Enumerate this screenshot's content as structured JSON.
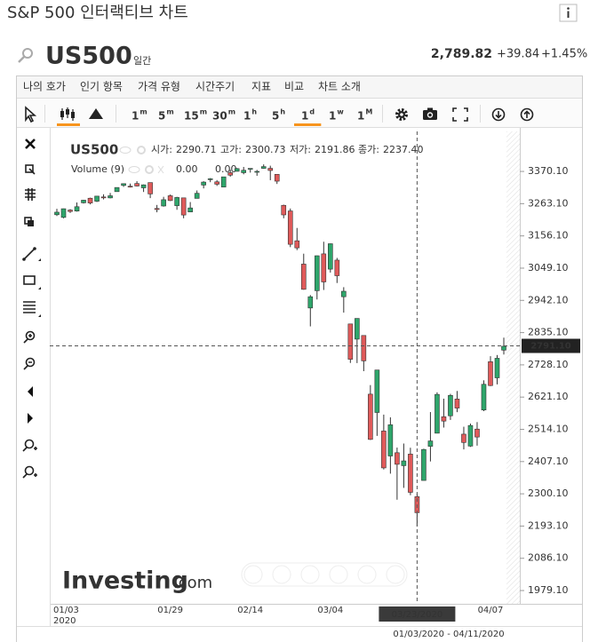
{
  "header": {
    "title": "S&P 500 인터랙티브 차트",
    "symbol": "US500",
    "interval": "일간",
    "price": "2,789.82",
    "change": "+39.84",
    "change_pct": "+1.45%"
  },
  "menu": [
    "나의 호가",
    "인기 항목",
    "가격 유형",
    "시간주기",
    "지표",
    "비교",
    "차트 소개"
  ],
  "toolbar": {
    "timeframes": [
      {
        "n": "1",
        "u": "m"
      },
      {
        "n": "5",
        "u": "m"
      },
      {
        "n": "15",
        "u": "m"
      },
      {
        "n": "30",
        "u": "m"
      },
      {
        "n": "1",
        "u": "h"
      },
      {
        "n": "5",
        "u": "h"
      },
      {
        "n": "1",
        "u": "d"
      },
      {
        "n": "1",
        "u": "w"
      },
      {
        "n": "1",
        "u": "M"
      }
    ],
    "selected_timeframe": 6
  },
  "legend": {
    "ohlc_titles": [
      "시가:",
      "고가:",
      "저가:",
      "종가:"
    ],
    "ohlc_values": [
      "2290.71",
      "2300.73",
      "2191.86",
      "2237.40"
    ],
    "volume_name": "Volume (9)",
    "volume_values": [
      "0.00",
      "0.00"
    ]
  },
  "watermark": {
    "brand": "Investing",
    "suffix": ".com"
  },
  "date_range": "01/03/2020 - 04/11/2020",
  "chart_data": {
    "type": "candlestick",
    "categories": [
      "01/03",
      null,
      null,
      null,
      null,
      null,
      null,
      null,
      null,
      null,
      null,
      null,
      null,
      null,
      null,
      null,
      null,
      "01/29",
      null,
      null,
      null,
      null,
      null,
      null,
      null,
      null,
      null,
      null,
      null,
      "02/14",
      null,
      null,
      null,
      null,
      null,
      null,
      null,
      null,
      null,
      null,
      null,
      "03/04",
      null,
      null,
      null,
      null,
      null,
      null,
      null,
      null,
      null,
      null,
      null,
      null,
      "03/23/2020",
      null,
      null,
      null,
      null,
      null,
      null,
      null,
      null,
      null,
      null,
      "04/07",
      null,
      null
    ],
    "year_label": "2020",
    "series": [
      {
        "name": "US500",
        "up_color": "#2ea66b",
        "down_color": "#e05a5a",
        "open": [
          3226.36,
          3217.55,
          3241.86,
          3238.59,
          3266.03,
          3281.2,
          3271.13,
          3285.35,
          3282.27,
          3302.97,
          3323.66,
          3321.03,
          3330.02,
          3315.77,
          3333.1,
          3247.16,
          3255.35,
          3289.46,
          3256.45,
          3282.33,
          3235.66,
          3280.61,
          3324.91,
          3344.92,
          3335.54,
          3318.28,
          3365.87,
          3370.5,
          3365.9,
          3378.08,
          3369.04,
          3380.39,
          3380.45,
          3360.5,
          3257.61,
          3238.94,
          3139.9,
          3062.54,
          2916.9,
          2974.28,
          3096.46,
          3045.75,
          3075.7,
          2954.2,
          2863.89,
          2813.48,
          2825.6,
          2630.86,
          2569.99,
          2508.59,
          2425.66,
          2436.5,
          2393.48,
          2431.94,
          2290.71,
          2344.44,
          2457.77,
          2501.29,
          2555.87,
          2558.98,
          2614.69,
          2498.08,
          2458.54,
          2514.92,
          2578.28,
          2738.65,
          2685.0,
          2776.99
        ],
        "high": [
          3246.15,
          3246.84,
          3244.91,
          3267.07,
          3275.58,
          3282.99,
          3288.13,
          3294.25,
          3298.66,
          3317.11,
          3329.88,
          3329.79,
          3337.77,
          3326.88,
          3333.18,
          3258.85,
          3285.78,
          3293.47,
          3285.91,
          3282.33,
          3268.44,
          3306.92,
          3337.58,
          3347.96,
          3341.42,
          3352.26,
          3375.63,
          3381.47,
          3385.09,
          3380.69,
          3375.01,
          3393.52,
          3389.15,
          3360.76,
          3259.81,
          3246.99,
          3182.51,
          3097.07,
          2959.72,
          3090.96,
          3136.72,
          3130.97,
          3083.04,
          2985.93,
          2863.89,
          2882.59,
          2825.6,
          2660.95,
          2711.33,
          2562.98,
          2553.93,
          2453.57,
          2466.97,
          2453.01,
          2300.73,
          2449.71,
          2571.42,
          2637.01,
          2615.91,
          2631.8,
          2641.39,
          2522.75,
          2533.22,
          2538.18,
          2676.85,
          2756.89,
          2760.75,
          2818.57
        ],
        "low": [
          3222.34,
          3214.64,
          3232.43,
          3236.67,
          3263.67,
          3260.86,
          3268.43,
          3277.19,
          3280.69,
          3302.82,
          3318.86,
          3316.61,
          3320.04,
          3301.87,
          3281.53,
          3234.5,
          3253.22,
          3271.89,
          3242.8,
          3214.68,
          3235.66,
          3280.61,
          3313.75,
          3334.39,
          3322.12,
          3317.77,
          3352.72,
          3369.72,
          3360.52,
          3366.15,
          3355.61,
          3378.83,
          3341.02,
          3328.45,
          3214.65,
          3118.77,
          3108.99,
          2977.39,
          2855.84,
          2945.19,
          2976.63,
          3034.38,
          2999.83,
          2901.54,
          2734.43,
          2734.0,
          2707.22,
          2478.86,
          2492.37,
          2380.94,
          2367.04,
          2280.52,
          2319.78,
          2295.56,
          2191.86,
          2344.44,
          2407.53,
          2500.72,
          2520.02,
          2545.28,
          2571.15,
          2447.49,
          2455.79,
          2459.96,
          2574.57,
          2657.67,
          2663.3,
          2762.36
        ],
        "close": [
          3234.85,
          3246.28,
          3237.18,
          3253.05,
          3274.7,
          3265.35,
          3288.13,
          3283.15,
          3289.29,
          3316.81,
          3329.62,
          3320.79,
          3321.75,
          3325.54,
          3295.47,
          3243.63,
          3276.24,
          3273.4,
          3283.66,
          3225.52,
          3248.92,
          3297.59,
          3334.69,
          3345.78,
          3327.71,
          3352.09,
          3357.75,
          3379.45,
          3373.94,
          3380.16,
          3370.29,
          3386.15,
          3373.23,
          3337.75,
          3225.89,
          3128.21,
          3116.39,
          2978.76,
          2954.22,
          3090.23,
          3003.37,
          3130.12,
          3023.94,
          2972.37,
          2746.56,
          2882.23,
          2741.38,
          2480.64,
          2711.02,
          2386.13,
          2529.19,
          2398.1,
          2409.39,
          2304.92,
          2237.4,
          2447.33,
          2475.56,
          2630.07,
          2541.47,
          2626.65,
          2584.59,
          2470.5,
          2526.9,
          2488.65,
          2663.68,
          2659.41,
          2749.98,
          2789.82
        ]
      }
    ],
    "ylim": [
      1935,
      3497
    ],
    "yticks": [
      {
        "value": 3370.1,
        "label": "3370.10"
      },
      {
        "value": 3263.1,
        "label": "3263.10"
      },
      {
        "value": 3156.1,
        "label": "3156.10"
      },
      {
        "value": 3049.1,
        "label": "3049.10"
      },
      {
        "value": 2942.1,
        "label": "2942.10"
      },
      {
        "value": 2835.1,
        "label": "2835.10"
      },
      {
        "value": 2728.1,
        "label": "2728.10"
      },
      {
        "value": 2621.1,
        "label": "2621.10"
      },
      {
        "value": 2514.1,
        "label": "2514.10"
      },
      {
        "value": 2407.1,
        "label": "2407.10"
      },
      {
        "value": 2300.1,
        "label": "2300.10"
      },
      {
        "value": 2193.1,
        "label": "2193.10"
      },
      {
        "value": 2086.1,
        "label": "2086.10"
      },
      {
        "value": 1979.1,
        "label": "1979.10"
      }
    ],
    "crosshair_price": {
      "value": 2791.1,
      "label": "2791.10"
    },
    "grid": false
  }
}
